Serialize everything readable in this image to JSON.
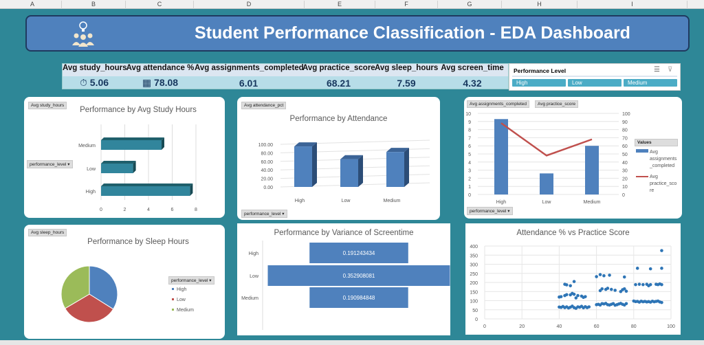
{
  "columns": [
    "A",
    "B",
    "C",
    "D",
    "E",
    "F",
    "G",
    "H",
    "I"
  ],
  "banner": {
    "title": "Student Performance Classification - EDA Dashboard",
    "icon": "team-idea-icon"
  },
  "kpis": [
    {
      "label": "Avg study_hours",
      "value": "5.06",
      "icon": "stopwatch-icon"
    },
    {
      "label": "Avg attendance %",
      "value": "78.08",
      "icon": "calendar-icon"
    },
    {
      "label": "Avg assignments_completed",
      "value": "6.01"
    },
    {
      "label": "Avg practice_score",
      "value": "68.21"
    },
    {
      "label": "Avg sleep_hours",
      "value": "7.59"
    },
    {
      "label": "Avg screen_time",
      "value": "4.32"
    }
  ],
  "slicer": {
    "title": "Performance Level",
    "items": [
      "High",
      "Low",
      "Medium"
    ],
    "icons": [
      "multi-select-icon",
      "clear-filter-icon"
    ]
  },
  "colors": {
    "background": "#2e8797",
    "banner": "#4f81bd",
    "teal_bar": "#31859c",
    "blue": "#4f81bd",
    "red": "#c0504d",
    "green": "#9bbb59"
  },
  "chart_data": [
    {
      "type": "bar",
      "orientation": "horizontal",
      "title": "Performance by Avg Study Hours",
      "field_tag": "Avg study_hours",
      "filter": "performance_level",
      "categories": [
        "High",
        "Low",
        "Medium"
      ],
      "values": [
        7.5,
        2.7,
        5.1
      ],
      "xlim": [
        0,
        8
      ],
      "xticks": [
        0,
        2,
        4,
        6,
        8
      ]
    },
    {
      "type": "bar",
      "title": "Performance by Attendance",
      "field_tag": "Avg attendance_pct",
      "filter": "performance_level",
      "categories": [
        "High",
        "Low",
        "Medium"
      ],
      "values": [
        95,
        65,
        82
      ],
      "ylim": [
        0,
        100
      ],
      "yticks": [
        "0.00",
        "20.00",
        "40.00",
        "60.00",
        "80.00",
        "100.00"
      ]
    },
    {
      "type": "bar+line",
      "field_tags": [
        "Avg assignments_completed",
        "Avg practice_score"
      ],
      "filter": "performance_level",
      "categories": [
        "High",
        "Low",
        "Medium"
      ],
      "series": [
        {
          "name": "Avg assignments_completed",
          "type": "bar",
          "values": [
            9.3,
            2.6,
            6.0
          ]
        },
        {
          "name": "Avg practice_score",
          "type": "line",
          "values": [
            88,
            48,
            68
          ]
        }
      ],
      "ylim": [
        0,
        10
      ],
      "y2lim": [
        0,
        100
      ],
      "legend_title": "Values",
      "legend": "right"
    },
    {
      "type": "pie",
      "title": "Performance by Sleep Hours",
      "field_tag": "Avg sleep_hours",
      "legend_title": "performance_level",
      "categories": [
        "High",
        "Low",
        "Medium"
      ],
      "values": [
        7.7,
        7.4,
        7.6
      ]
    },
    {
      "type": "bar",
      "orientation": "horizontal-funnel",
      "title": "Performance by Variance of Screentime",
      "categories": [
        "High",
        "Low",
        "Medium"
      ],
      "values": [
        0.191243434,
        0.352908081,
        0.190984848
      ],
      "labels": [
        "0.191243434",
        "0.352908081",
        "0.190984848"
      ]
    },
    {
      "type": "scatter",
      "title": "Attendance % vs Practice Score",
      "xlim": [
        0,
        100
      ],
      "ylim": [
        0,
        400
      ],
      "xticks": [
        0,
        20,
        40,
        60,
        80,
        100
      ],
      "yticks": [
        0,
        50,
        100,
        150,
        200,
        250,
        300,
        350,
        400
      ],
      "points": [
        [
          40,
          65
        ],
        [
          41,
          63
        ],
        [
          42,
          68
        ],
        [
          43,
          62
        ],
        [
          44,
          66
        ],
        [
          45,
          60
        ],
        [
          46,
          64
        ],
        [
          47,
          70
        ],
        [
          48,
          62
        ],
        [
          49,
          58
        ],
        [
          50,
          66
        ],
        [
          51,
          64
        ],
        [
          52,
          69
        ],
        [
          53,
          61
        ],
        [
          54,
          67
        ],
        [
          55,
          62
        ],
        [
          56,
          66
        ],
        [
          40,
          120
        ],
        [
          41,
          122
        ],
        [
          43,
          128
        ],
        [
          44,
          133
        ],
        [
          46,
          132
        ],
        [
          47,
          140
        ],
        [
          48,
          135
        ],
        [
          49,
          115
        ],
        [
          50,
          128
        ],
        [
          52,
          125
        ],
        [
          53,
          118
        ],
        [
          54,
          122
        ],
        [
          43,
          190
        ],
        [
          44,
          187
        ],
        [
          46,
          182
        ],
        [
          48,
          205
        ],
        [
          60,
          78
        ],
        [
          61,
          80
        ],
        [
          62,
          76
        ],
        [
          63,
          84
        ],
        [
          64,
          82
        ],
        [
          65,
          85
        ],
        [
          66,
          78
        ],
        [
          67,
          76
        ],
        [
          68,
          80
        ],
        [
          69,
          84
        ],
        [
          70,
          75
        ],
        [
          71,
          78
        ],
        [
          72,
          82
        ],
        [
          73,
          85
        ],
        [
          74,
          80
        ],
        [
          75,
          76
        ],
        [
          76,
          84
        ],
        [
          62,
          155
        ],
        [
          63,
          165
        ],
        [
          65,
          162
        ],
        [
          66,
          168
        ],
        [
          68,
          162
        ],
        [
          70,
          157
        ],
        [
          73,
          150
        ],
        [
          74,
          160
        ],
        [
          75,
          165
        ],
        [
          76,
          152
        ],
        [
          60,
          232
        ],
        [
          62,
          243
        ],
        [
          64,
          237
        ],
        [
          67,
          240
        ],
        [
          75,
          230
        ],
        [
          80,
          98
        ],
        [
          81,
          95
        ],
        [
          82,
          96
        ],
        [
          83,
          92
        ],
        [
          84,
          97
        ],
        [
          85,
          94
        ],
        [
          86,
          96
        ],
        [
          87,
          93
        ],
        [
          88,
          95
        ],
        [
          89,
          92
        ],
        [
          90,
          97
        ],
        [
          91,
          94
        ],
        [
          92,
          96
        ],
        [
          93,
          98
        ],
        [
          94,
          93
        ],
        [
          95,
          90
        ],
        [
          81,
          188
        ],
        [
          83,
          190
        ],
        [
          85,
          188
        ],
        [
          87,
          190
        ],
        [
          88,
          182
        ],
        [
          89,
          188
        ],
        [
          92,
          190
        ],
        [
          93,
          188
        ],
        [
          94,
          192
        ],
        [
          95,
          188
        ],
        [
          82,
          278
        ],
        [
          89,
          275
        ],
        [
          95,
          278
        ],
        [
          95,
          375
        ]
      ]
    }
  ]
}
